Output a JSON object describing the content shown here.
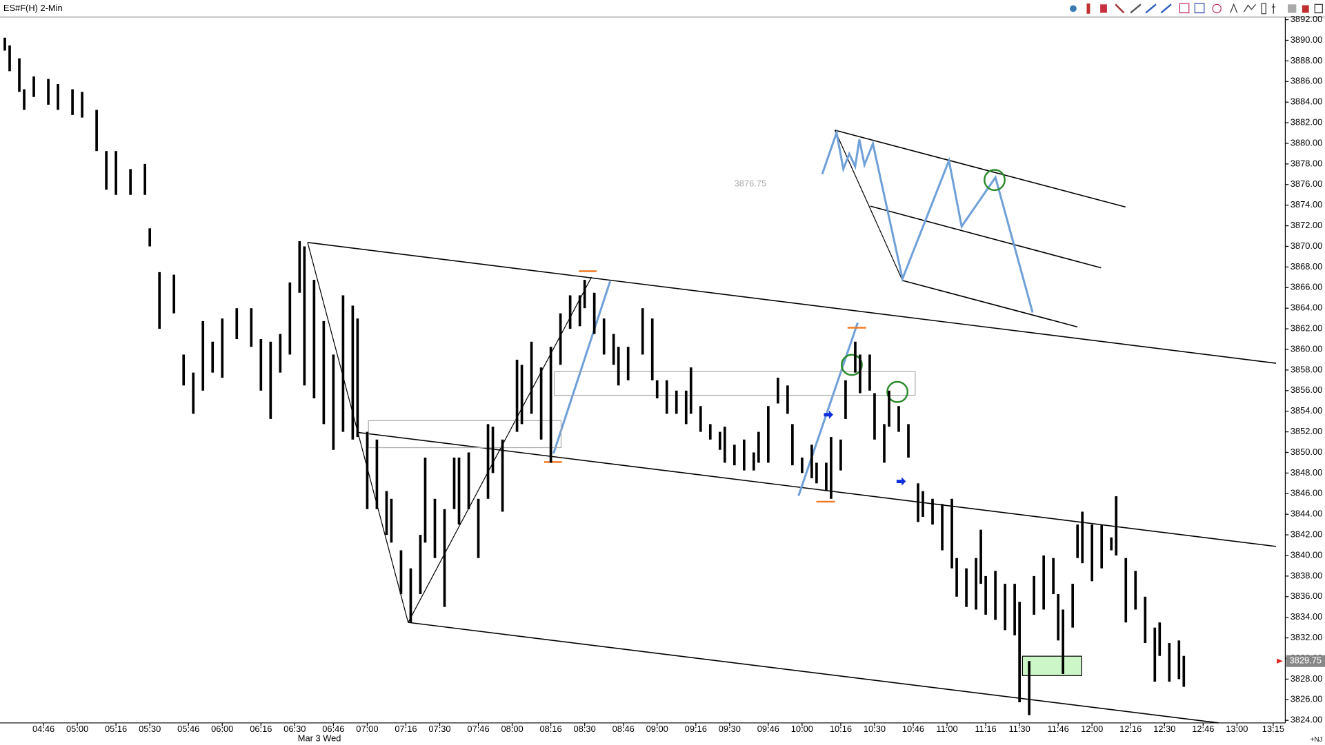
{
  "chart_data": {
    "type": "hl-bar",
    "title": "ES#F(H) 2-Min",
    "date_label": "Mar 3 Wed",
    "corner_label": "+NJ",
    "cursor_price": 3876.75,
    "last_price": 3829.75,
    "color": "#000000",
    "xlim": [
      "04:28",
      "13:20"
    ],
    "ylim": [
      3823.75,
      3892.75
    ],
    "xticks": [
      "04:46",
      "05:00",
      "05:16",
      "05:30",
      "05:46",
      "06:00",
      "06:16",
      "06:30",
      "06:46",
      "07:00",
      "07:16",
      "07:30",
      "07:46",
      "08:00",
      "08:16",
      "08:30",
      "08:46",
      "09:00",
      "09:16",
      "09:30",
      "09:46",
      "10:00",
      "10:16",
      "10:30",
      "10:46",
      "11:00",
      "11:16",
      "11:30",
      "11:46",
      "12:00",
      "12:16",
      "12:30",
      "12:46",
      "13:00",
      "13:15"
    ],
    "yticks": [
      {
        "value": 3824,
        "label": "3824.00"
      },
      {
        "value": 3826,
        "label": "3826.00"
      },
      {
        "value": 3828,
        "label": "3828.00"
      },
      {
        "value": 3830,
        "label": "3830.00"
      },
      {
        "value": 3832,
        "label": "3832.00"
      },
      {
        "value": 3834,
        "label": "3834.00"
      },
      {
        "value": 3836,
        "label": "3836.00"
      },
      {
        "value": 3838,
        "label": "3838.00"
      },
      {
        "value": 3840,
        "label": "3840.00"
      },
      {
        "value": 3842,
        "label": "3842.00"
      },
      {
        "value": 3844,
        "label": "3844.00"
      },
      {
        "value": 3846,
        "label": "3846.00"
      },
      {
        "value": 3848,
        "label": "3848.00"
      },
      {
        "value": 3850,
        "label": "3850.00"
      },
      {
        "value": 3852,
        "label": "3852.00"
      },
      {
        "value": 3854,
        "label": "3854.00"
      },
      {
        "value": 3856,
        "label": "3856.00"
      },
      {
        "value": 3858,
        "label": "3858.00"
      },
      {
        "value": 3860,
        "label": "3860.00"
      },
      {
        "value": 3862,
        "label": "3862.00"
      },
      {
        "value": 3864,
        "label": "3864.00"
      },
      {
        "value": 3866,
        "label": "3866.00"
      },
      {
        "value": 3868,
        "label": "3868.00"
      },
      {
        "value": 3870,
        "label": "3870.00"
      },
      {
        "value": 3872,
        "label": "3872.00"
      },
      {
        "value": 3874,
        "label": "3874.00"
      },
      {
        "value": 3876,
        "label": "3876.00"
      },
      {
        "value": 3878,
        "label": "3878.00"
      },
      {
        "value": 3880,
        "label": "3880.00"
      },
      {
        "value": 3882,
        "label": "3882.00"
      },
      {
        "value": 3884,
        "label": "3884.00"
      },
      {
        "value": 3886,
        "label": "3886.00"
      },
      {
        "value": 3888,
        "label": "3888.00"
      },
      {
        "value": 3890,
        "label": "3890.00"
      },
      {
        "value": 3892,
        "label": "3892.00"
      }
    ],
    "bars": [
      {
        "t": "04:30",
        "high": 3890.25,
        "low": 3889.0
      },
      {
        "t": "04:32",
        "high": 3889.5,
        "low": 3887.0
      },
      {
        "t": "04:36",
        "high": 3888.25,
        "low": 3885.0
      },
      {
        "t": "04:38",
        "high": 3885.25,
        "low": 3883.25
      },
      {
        "t": "04:42",
        "high": 3886.5,
        "low": 3884.5
      },
      {
        "t": "04:48",
        "high": 3886.25,
        "low": 3883.75
      },
      {
        "t": "04:52",
        "high": 3885.75,
        "low": 3883.25
      },
      {
        "t": "04:58",
        "high": 3885.25,
        "low": 3882.75
      },
      {
        "t": "05:02",
        "high": 3885.0,
        "low": 3882.5
      },
      {
        "t": "05:08",
        "high": 3883.25,
        "low": 3879.25
      },
      {
        "t": "05:12",
        "high": 3879.25,
        "low": 3875.5
      },
      {
        "t": "05:16",
        "high": 3879.25,
        "low": 3875.0
      },
      {
        "t": "05:22",
        "high": 3877.5,
        "low": 3875.0
      },
      {
        "t": "05:28",
        "high": 3878.0,
        "low": 3875.0
      },
      {
        "t": "05:30",
        "high": 3871.75,
        "low": 3870.0
      },
      {
        "t": "05:34",
        "high": 3867.5,
        "low": 3862.0
      },
      {
        "t": "05:40",
        "high": 3867.25,
        "low": 3863.5
      },
      {
        "t": "05:44",
        "high": 3859.5,
        "low": 3856.5
      },
      {
        "t": "05:48",
        "high": 3857.75,
        "low": 3853.75
      },
      {
        "t": "05:52",
        "high": 3862.75,
        "low": 3856.0
      },
      {
        "t": "05:56",
        "high": 3860.75,
        "low": 3857.75
      },
      {
        "t": "06:00",
        "high": 3863.0,
        "low": 3857.25
      },
      {
        "t": "06:06",
        "high": 3864.0,
        "low": 3861.0
      },
      {
        "t": "06:12",
        "high": 3864.0,
        "low": 3860.25
      },
      {
        "t": "06:16",
        "high": 3861.0,
        "low": 3856.0
      },
      {
        "t": "06:20",
        "high": 3860.75,
        "low": 3853.25
      },
      {
        "t": "06:24",
        "high": 3861.5,
        "low": 3857.75
      },
      {
        "t": "06:28",
        "high": 3866.5,
        "low": 3859.5
      },
      {
        "t": "06:32",
        "high": 3870.5,
        "low": 3865.5
      },
      {
        "t": "06:34",
        "high": 3870.0,
        "low": 3856.5
      },
      {
        "t": "06:38",
        "high": 3866.75,
        "low": 3855.25
      },
      {
        "t": "06:42",
        "high": 3862.75,
        "low": 3852.75
      },
      {
        "t": "06:46",
        "high": 3859.5,
        "low": 3850.25
      },
      {
        "t": "06:50",
        "high": 3865.25,
        "low": 3852.0
      },
      {
        "t": "06:54",
        "high": 3864.25,
        "low": 3851.25
      },
      {
        "t": "06:56",
        "high": 3863.0,
        "low": 3851.5
      },
      {
        "t": "07:00",
        "high": 3852.0,
        "low": 3844.5
      },
      {
        "t": "07:04",
        "high": 3851.25,
        "low": 3844.5
      },
      {
        "t": "07:08",
        "high": 3846.25,
        "low": 3842.0
      },
      {
        "t": "07:10",
        "high": 3845.5,
        "low": 3841.25
      },
      {
        "t": "07:14",
        "high": 3840.5,
        "low": 3836.25
      },
      {
        "t": "07:18",
        "high": 3838.75,
        "low": 3833.5
      },
      {
        "t": "07:22",
        "high": 3842.0,
        "low": 3836.25
      },
      {
        "t": "07:24",
        "high": 3849.5,
        "low": 3841.25
      },
      {
        "t": "07:28",
        "high": 3845.5,
        "low": 3839.75
      },
      {
        "t": "07:32",
        "high": 3844.5,
        "low": 3835.0
      },
      {
        "t": "07:36",
        "high": 3849.5,
        "low": 3844.5
      },
      {
        "t": "07:38",
        "high": 3849.5,
        "low": 3843.0
      },
      {
        "t": "07:42",
        "high": 3850.0,
        "low": 3844.5
      },
      {
        "t": "07:46",
        "high": 3845.5,
        "low": 3839.75
      },
      {
        "t": "07:50",
        "high": 3852.75,
        "low": 3845.5
      },
      {
        "t": "07:52",
        "high": 3852.5,
        "low": 3848.0
      },
      {
        "t": "07:56",
        "high": 3851.25,
        "low": 3844.25
      },
      {
        "t": "08:02",
        "high": 3859.0,
        "low": 3852.0
      },
      {
        "t": "08:04",
        "high": 3858.5,
        "low": 3852.75
      },
      {
        "t": "08:08",
        "high": 3860.75,
        "low": 3853.75
      },
      {
        "t": "08:12",
        "high": 3858.25,
        "low": 3851.25
      },
      {
        "t": "08:16",
        "high": 3860.25,
        "low": 3849.0
      },
      {
        "t": "08:20",
        "high": 3863.5,
        "low": 3858.5
      },
      {
        "t": "08:24",
        "high": 3865.25,
        "low": 3862.0
      },
      {
        "t": "08:28",
        "high": 3865.25,
        "low": 3862.25
      },
      {
        "t": "08:30",
        "high": 3866.75,
        "low": 3864.0
      },
      {
        "t": "08:34",
        "high": 3865.5,
        "low": 3861.5
      },
      {
        "t": "08:38",
        "high": 3863.0,
        "low": 3859.5
      },
      {
        "t": "08:42",
        "high": 3861.5,
        "low": 3858.5
      },
      {
        "t": "08:44",
        "high": 3860.25,
        "low": 3856.5
      },
      {
        "t": "08:48",
        "high": 3860.25,
        "low": 3857.0
      },
      {
        "t": "08:54",
        "high": 3864.0,
        "low": 3859.5
      },
      {
        "t": "08:58",
        "high": 3863.0,
        "low": 3857.0
      },
      {
        "t": "09:00",
        "high": 3857.0,
        "low": 3855.25
      },
      {
        "t": "09:04",
        "high": 3857.0,
        "low": 3853.75
      },
      {
        "t": "09:08",
        "high": 3856.0,
        "low": 3853.75
      },
      {
        "t": "09:12",
        "high": 3856.0,
        "low": 3852.75
      },
      {
        "t": "09:14",
        "high": 3858.25,
        "low": 3853.75
      },
      {
        "t": "09:18",
        "high": 3854.5,
        "low": 3852.0
      },
      {
        "t": "09:22",
        "high": 3852.75,
        "low": 3851.25
      },
      {
        "t": "09:26",
        "high": 3852.0,
        "low": 3850.25
      },
      {
        "t": "09:28",
        "high": 3852.5,
        "low": 3849.0
      },
      {
        "t": "09:32",
        "high": 3850.75,
        "low": 3848.75
      },
      {
        "t": "09:36",
        "high": 3851.25,
        "low": 3848.25
      },
      {
        "t": "09:40",
        "high": 3850.0,
        "low": 3848.25
      },
      {
        "t": "09:42",
        "high": 3852.0,
        "low": 3849.0
      },
      {
        "t": "09:46",
        "high": 3854.5,
        "low": 3849.0
      },
      {
        "t": "09:50",
        "high": 3857.25,
        "low": 3854.75
      },
      {
        "t": "09:54",
        "high": 3856.5,
        "low": 3853.75
      },
      {
        "t": "09:56",
        "high": 3852.75,
        "low": 3848.75
      },
      {
        "t": "10:00",
        "high": 3849.5,
        "low": 3848.0
      },
      {
        "t": "10:04",
        "high": 3850.75,
        "low": 3847.5
      },
      {
        "t": "10:06",
        "high": 3849.0,
        "low": 3847.0
      },
      {
        "t": "10:10",
        "high": 3849.0,
        "low": 3846.25
      },
      {
        "t": "10:12",
        "high": 3851.5,
        "low": 3845.5
      },
      {
        "t": "10:16",
        "high": 3851.25,
        "low": 3848.25
      },
      {
        "t": "10:18",
        "high": 3857.0,
        "low": 3853.25
      },
      {
        "t": "10:22",
        "high": 3860.75,
        "low": 3857.75
      },
      {
        "t": "10:24",
        "high": 3859.5,
        "low": 3855.75
      },
      {
        "t": "10:28",
        "high": 3859.5,
        "low": 3856.0
      },
      {
        "t": "10:30",
        "high": 3855.75,
        "low": 3851.25
      },
      {
        "t": "10:34",
        "high": 3852.75,
        "low": 3849.0
      },
      {
        "t": "10:36",
        "high": 3856.0,
        "low": 3852.5
      },
      {
        "t": "10:40",
        "high": 3854.5,
        "low": 3852.0
      },
      {
        "t": "10:44",
        "high": 3852.75,
        "low": 3849.5
      },
      {
        "t": "10:48",
        "high": 3847.0,
        "low": 3843.25
      },
      {
        "t": "10:50",
        "high": 3846.25,
        "low": 3843.75
      },
      {
        "t": "10:54",
        "high": 3845.5,
        "low": 3843.0
      },
      {
        "t": "10:58",
        "high": 3845.0,
        "low": 3840.5
      },
      {
        "t": "11:02",
        "high": 3845.5,
        "low": 3838.75
      },
      {
        "t": "11:04",
        "high": 3839.75,
        "low": 3836.0
      },
      {
        "t": "11:08",
        "high": 3838.75,
        "low": 3835.0
      },
      {
        "t": "11:12",
        "high": 3839.75,
        "low": 3834.75
      },
      {
        "t": "11:14",
        "high": 3842.5,
        "low": 3837.25
      },
      {
        "t": "11:16",
        "high": 3838.0,
        "low": 3834.25
      },
      {
        "t": "11:20",
        "high": 3838.5,
        "low": 3833.75
      },
      {
        "t": "11:24",
        "high": 3837.25,
        "low": 3832.75
      },
      {
        "t": "11:28",
        "high": 3837.25,
        "low": 3832.25
      },
      {
        "t": "11:30",
        "high": 3835.5,
        "low": 3825.75
      },
      {
        "t": "11:34",
        "high": 3829.75,
        "low": 3824.5
      },
      {
        "t": "11:36",
        "high": 3838.0,
        "low": 3834.25
      },
      {
        "t": "11:40",
        "high": 3840.0,
        "low": 3834.75
      },
      {
        "t": "11:44",
        "high": 3839.75,
        "low": 3836.25
      },
      {
        "t": "11:46",
        "high": 3836.25,
        "low": 3831.75
      },
      {
        "t": "11:48",
        "high": 3834.75,
        "low": 3828.5
      },
      {
        "t": "11:52",
        "high": 3837.25,
        "low": 3833.0
      },
      {
        "t": "11:54",
        "high": 3843.0,
        "low": 3839.75
      },
      {
        "t": "11:56",
        "high": 3844.25,
        "low": 3839.25
      },
      {
        "t": "12:00",
        "high": 3843.0,
        "low": 3837.5
      },
      {
        "t": "12:04",
        "high": 3843.0,
        "low": 3838.75
      },
      {
        "t": "12:08",
        "high": 3841.75,
        "low": 3840.5
      },
      {
        "t": "12:10",
        "high": 3845.75,
        "low": 3840.0
      },
      {
        "t": "12:14",
        "high": 3839.75,
        "low": 3833.5
      },
      {
        "t": "12:18",
        "high": 3838.5,
        "low": 3834.75
      },
      {
        "t": "12:22",
        "high": 3836.0,
        "low": 3831.5
      },
      {
        "t": "12:26",
        "high": 3833.0,
        "low": 3827.75
      },
      {
        "t": "12:28",
        "high": 3833.5,
        "low": 3830.25
      },
      {
        "t": "12:32",
        "high": 3831.5,
        "low": 3827.75
      },
      {
        "t": "12:36",
        "high": 3831.75,
        "low": 3828.0
      },
      {
        "t": "12:38",
        "high": 3830.25,
        "low": 3827.25
      }
    ]
  }
}
